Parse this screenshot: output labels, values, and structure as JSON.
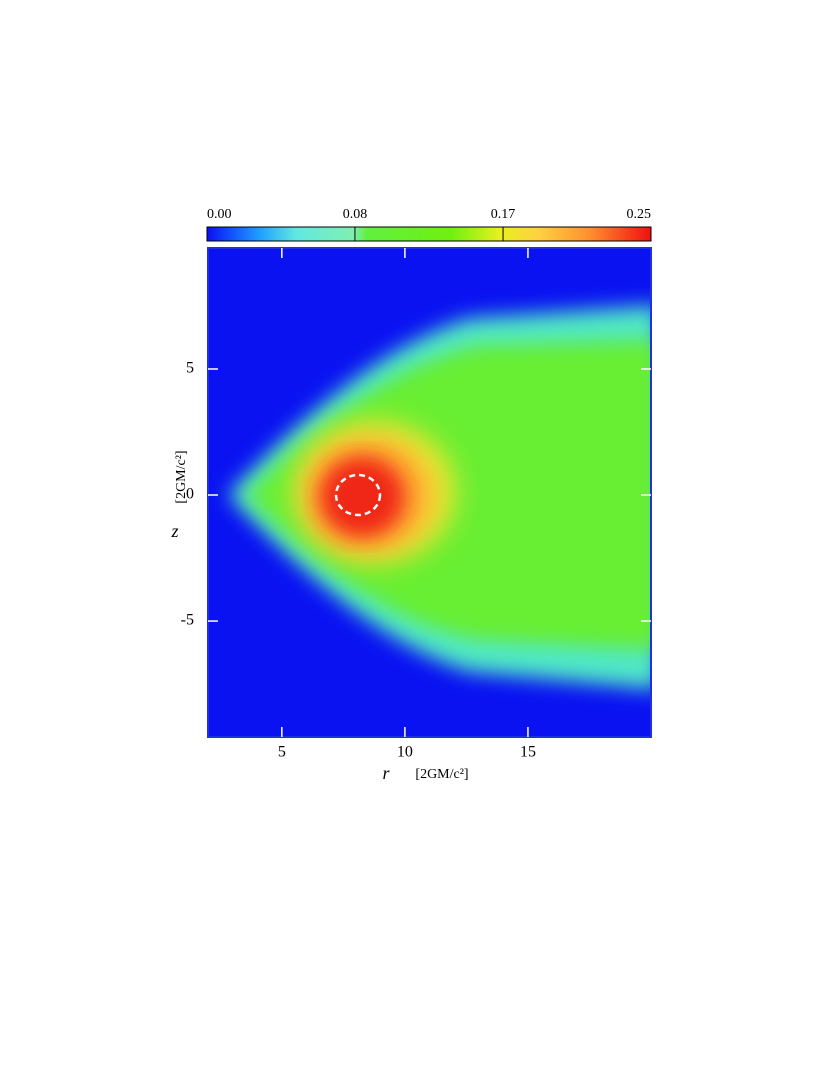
{
  "chart_data": {
    "type": "heatmap",
    "xlabel": "r",
    "xunit": "[2GM/c²]",
    "ylabel": "z",
    "yunit": "[2GM/c²]",
    "xlim": [
      2,
      20
    ],
    "xticks": [
      5,
      10,
      15
    ],
    "ylim": [
      -9.6,
      9.8
    ],
    "yticks": [
      5,
      0,
      -5
    ],
    "clim": [
      0,
      0.25
    ],
    "cticks": [
      {
        "value": 0,
        "label": "0.00"
      },
      {
        "value": 0.0833,
        "label": "0.08"
      },
      {
        "value": 0.1667,
        "label": "0.17"
      },
      {
        "value": 0.25,
        "label": "0.25"
      }
    ]
  }
}
